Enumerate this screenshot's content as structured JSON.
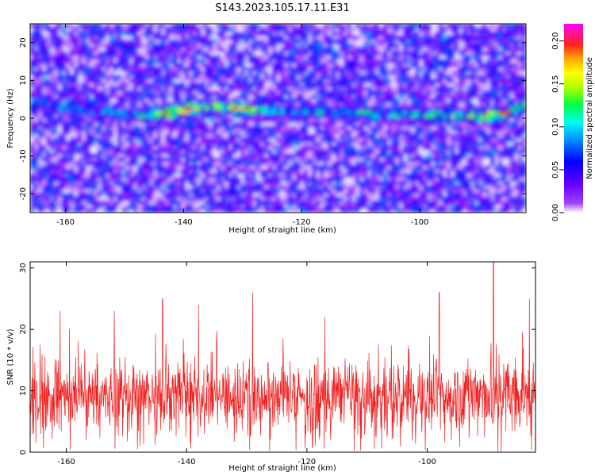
{
  "figure": {
    "title": "S143.2023.105.17.11.E31"
  },
  "colors": {
    "snr_line": "#f02020",
    "colormap": [
      "#ffffff",
      "#8f00ff",
      "#3300ff",
      "#0088ff",
      "#00ffee",
      "#00ff44",
      "#aaff00",
      "#ffff00",
      "#ffa000",
      "#ff2020",
      "#ff1493",
      "#ff00ff"
    ]
  },
  "chart_data": [
    {
      "type": "heatmap",
      "xlabel": "Height of straight line (km)",
      "ylabel": "Frequency (Hz)",
      "xlim": [
        -166,
        -82
      ],
      "ylim": [
        -25,
        25
      ],
      "xticks": [
        -160,
        -140,
        -120,
        -100
      ],
      "yticks": [
        -20,
        -10,
        0,
        10,
        20
      ],
      "colorbar": {
        "label": "Normalized spectral amplitude",
        "range": [
          0.0,
          0.22
        ],
        "ticks": [
          0.0,
          0.05,
          0.1,
          0.15,
          0.2
        ],
        "tick_labels": [
          "0.00",
          "0.05",
          "0.10",
          "0.15",
          "0.20"
        ]
      },
      "noise_level": 0.05,
      "signal_ridge": [
        {
          "x": -166,
          "freq": 4.5,
          "amp": 0.09
        },
        {
          "x": -150,
          "freq": 1.0,
          "amp": 0.1
        },
        {
          "x": -142,
          "freq": 1.5,
          "amp": 0.17
        },
        {
          "x": -139,
          "freq": 2.5,
          "amp": 0.2
        },
        {
          "x": -136,
          "freq": 3.0,
          "amp": 0.14
        },
        {
          "x": -130,
          "freq": 2.5,
          "amp": 0.18
        },
        {
          "x": -125,
          "freq": 2.0,
          "amp": 0.1
        },
        {
          "x": -100,
          "freq": 1.0,
          "amp": 0.12
        },
        {
          "x": -90,
          "freq": 0.5,
          "amp": 0.16
        },
        {
          "x": -86,
          "freq": 1.0,
          "amp": 0.19
        },
        {
          "x": -83,
          "freq": 3.0,
          "amp": 0.13
        }
      ]
    },
    {
      "type": "line",
      "xlabel": "Height of straight line (km)",
      "ylabel": "SNR (10 * v/v)",
      "xlim": [
        -166,
        -82
      ],
      "ylim": [
        0,
        31
      ],
      "xticks": [
        -160,
        -140,
        -120,
        -100
      ],
      "yticks": [
        0,
        10,
        20,
        30
      ],
      "series": [
        {
          "mean_level": 9,
          "spread": 3.5,
          "peaks": [
            {
              "x": -161,
              "y": 23
            },
            {
              "x": -152,
              "y": 23
            },
            {
              "x": -144,
              "y": 25
            },
            {
              "x": -138,
              "y": 24
            },
            {
              "x": -129,
              "y": 26
            },
            {
              "x": -117,
              "y": 22
            },
            {
              "x": -98,
              "y": 26
            },
            {
              "x": -89,
              "y": 31
            },
            {
              "x": -83,
              "y": 25
            }
          ]
        }
      ]
    }
  ]
}
